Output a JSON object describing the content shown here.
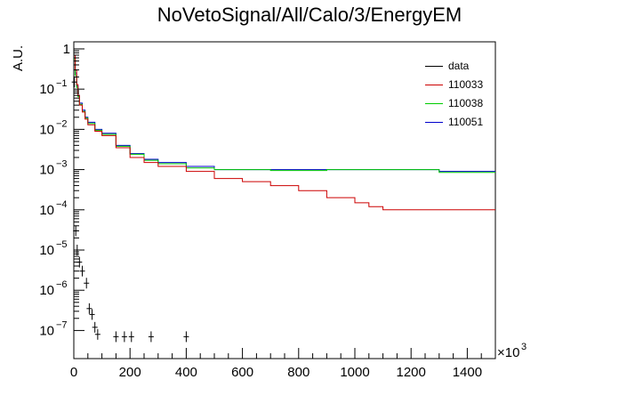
{
  "title": "NoVetoSignal/All/Calo/3/EnergyEM",
  "ylabel": "A.U.",
  "x_multiplier": "×10",
  "x_multiplier_exp": "3",
  "legend": [
    {
      "label": "data",
      "color": "#000000"
    },
    {
      "label": "110033",
      "color": "#cc0000"
    },
    {
      "label": "110038",
      "color": "#00cc00"
    },
    {
      "label": "110051",
      "color": "#0000cc"
    }
  ],
  "chart_data": {
    "type": "line",
    "title": "NoVetoSignal/All/Calo/3/EnergyEM",
    "xlabel": "",
    "ylabel": "A.U.",
    "x_scale_note": "×10^3",
    "xlim": [
      0,
      1500
    ],
    "ylim": [
      2e-08,
      1.5
    ],
    "log_y": true,
    "x_ticks": [
      0,
      200,
      400,
      600,
      800,
      1000,
      1200,
      1400
    ],
    "y_ticks": [
      {
        "v": 1,
        "label": "1"
      },
      {
        "v": 0.1,
        "label": "10",
        "exp": "−1"
      },
      {
        "v": 0.01,
        "label": "10",
        "exp": "−2"
      },
      {
        "v": 0.001,
        "label": "10",
        "exp": "−3"
      },
      {
        "v": 0.0001,
        "label": "10",
        "exp": "−4"
      },
      {
        "v": 1e-05,
        "label": "10",
        "exp": "−5"
      },
      {
        "v": 1e-06,
        "label": "10",
        "exp": "−6"
      },
      {
        "v": 1e-07,
        "label": "10",
        "exp": "−7"
      }
    ],
    "legend_position": "top-right",
    "bin_width": 5,
    "series": [
      {
        "name": "110051",
        "color": "#0000cc",
        "edges": [
          0,
          5,
          10,
          15,
          20,
          30,
          40,
          50,
          75,
          100,
          150,
          200,
          250,
          300,
          400,
          500,
          700,
          900,
          1100,
          1300,
          1500
        ],
        "values": [
          0.6,
          0.25,
          0.12,
          0.07,
          0.045,
          0.03,
          0.02,
          0.015,
          0.01,
          0.008,
          0.004,
          0.0025,
          0.0018,
          0.0015,
          0.0012,
          0.001,
          0.001,
          0.001,
          0.001,
          0.0009
        ]
      },
      {
        "name": "110038",
        "color": "#00cc00",
        "edges": [
          0,
          5,
          10,
          15,
          20,
          30,
          40,
          50,
          75,
          100,
          150,
          200,
          250,
          300,
          400,
          500,
          700,
          900,
          1100,
          1300,
          1500
        ],
        "values": [
          0.55,
          0.22,
          0.11,
          0.065,
          0.042,
          0.028,
          0.019,
          0.014,
          0.0095,
          0.0075,
          0.0038,
          0.0024,
          0.0017,
          0.0014,
          0.0011,
          0.001,
          0.00095,
          0.001,
          0.001,
          0.00085
        ]
      },
      {
        "name": "110033",
        "color": "#cc0000",
        "edges": [
          0,
          5,
          10,
          15,
          20,
          30,
          40,
          50,
          75,
          100,
          150,
          200,
          250,
          300,
          400,
          500,
          600,
          700,
          800,
          900,
          1000,
          1050,
          1100,
          1200,
          1300,
          1400,
          1500
        ],
        "values": [
          0.7,
          0.3,
          0.13,
          0.07,
          0.04,
          0.027,
          0.018,
          0.013,
          0.009,
          0.007,
          0.0035,
          0.002,
          0.0015,
          0.0012,
          0.0009,
          0.0006,
          0.0005,
          0.0004,
          0.0003,
          0.0002,
          0.00015,
          0.00012,
          0.0001,
          0.0001,
          0.0001,
          0.0001
        ]
      },
      {
        "name": "data",
        "color": "#000000",
        "type": "points",
        "points": [
          {
            "x": 2,
            "y": 0.15
          },
          {
            "x": 7,
            "y": 3e-05
          },
          {
            "x": 12,
            "y": 1e-05
          },
          {
            "x": 20,
            "y": 5e-06
          },
          {
            "x": 30,
            "y": 3e-06
          },
          {
            "x": 45,
            "y": 1.5e-06
          },
          {
            "x": 55,
            "y": 3.5e-07
          },
          {
            "x": 65,
            "y": 2.5e-07
          },
          {
            "x": 75,
            "y": 1.2e-07
          },
          {
            "x": 85,
            "y": 8e-08
          },
          {
            "x": 150,
            "y": 7e-08
          },
          {
            "x": 180,
            "y": 7e-08
          },
          {
            "x": 205,
            "y": 7e-08
          },
          {
            "x": 275,
            "y": 7e-08
          },
          {
            "x": 400,
            "y": 7e-08
          }
        ]
      }
    ]
  }
}
